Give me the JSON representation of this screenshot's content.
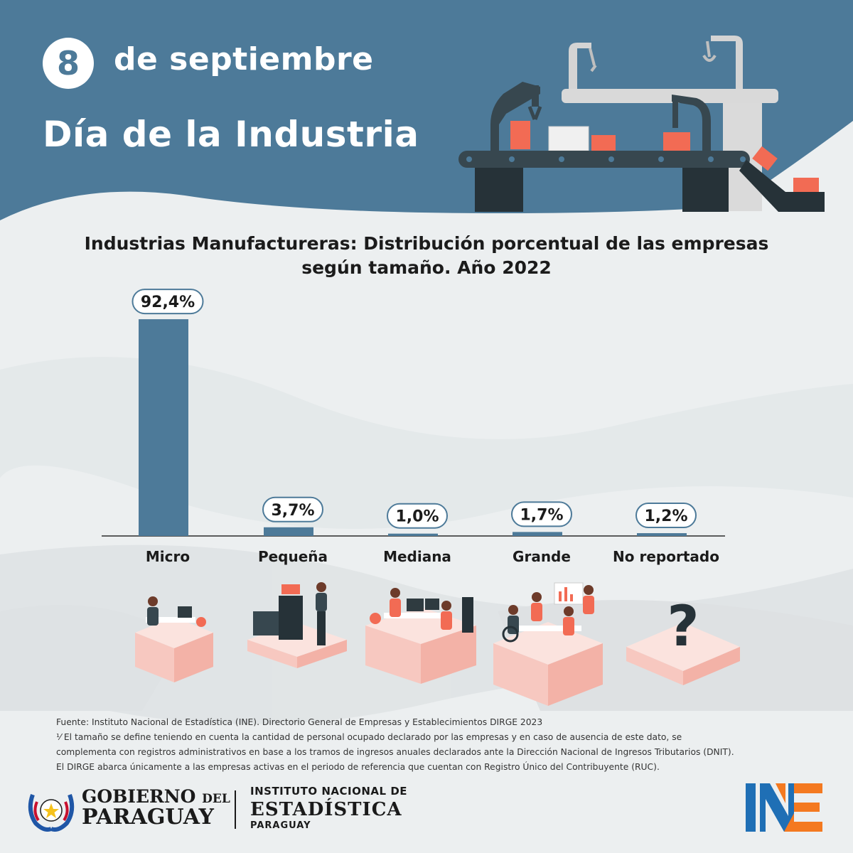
{
  "header": {
    "day": "8",
    "date_text": "de septiembre",
    "title": "Día de la Industria"
  },
  "colors": {
    "header_blue": "#4d7a99",
    "bar_blue": "#4d7a99",
    "accent_red": "#f26b54",
    "pink_base": "#f7c8c0"
  },
  "chart_data": {
    "type": "bar",
    "title_lines": [
      "Industrias Manufactureras: Distribución porcentual de las empresas",
      "según tamaño. Año 2022"
    ],
    "categories": [
      "Micro",
      "Pequeña",
      "Mediana",
      "Grande",
      "No reportado"
    ],
    "values": [
      92.4,
      3.7,
      1.0,
      1.7,
      1.2
    ],
    "data_labels": [
      "92,4%",
      "3,7%",
      "1,0%",
      "1,7%",
      "1,2%"
    ],
    "unit": "%",
    "ylim": [
      0,
      100
    ],
    "grid": false,
    "legend": "none"
  },
  "illustrations": [
    {
      "category": "Micro",
      "icon": "person-at-desk-icon"
    },
    {
      "category": "Pequeña",
      "icon": "office-printer-person-icon"
    },
    {
      "category": "Mediana",
      "icon": "team-at-desks-icon"
    },
    {
      "category": "Grande",
      "icon": "meeting-presentation-icon"
    },
    {
      "category": "No reportado",
      "icon": "question-mark-icon",
      "symbol": "?"
    }
  ],
  "footnote": {
    "lines": [
      "Fuente: Instituto Nacional de Estadística (INE). Directorio General de Empresas y Establecimientos DIRGE 2023",
      "¹⁄ El tamaño se define teniendo en cuenta la cantidad de personal ocupado declarado por las empresas y en caso de ausencia de este dato, se",
      "complementa con registros administrativos en base a los tramos de ingresos anuales declarados ante la Dirección Nacional de Ingresos Tributarios (DNIT).",
      "El DIRGE abarca únicamente a las empresas activas en el periodo de referencia que cuentan con Registro Único del Contribuyente (RUC)."
    ]
  },
  "footer": {
    "gobierno_line1": "GOBIERNO",
    "gobierno_del": "DEL",
    "gobierno_line2": "PARAGUAY",
    "ine_line1": "INSTITUTO NACIONAL DE",
    "ine_line2": "ESTADÍSTICA",
    "ine_line3": "PARAGUAY",
    "ine_logo_letters": [
      "I",
      "N",
      "E"
    ]
  }
}
